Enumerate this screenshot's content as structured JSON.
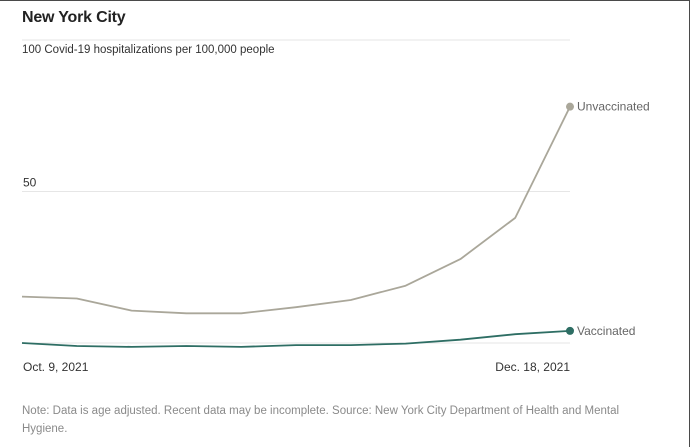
{
  "title": "New York City",
  "note": "Note: Data is age adjusted. Recent data may be incomplete. Source: New York City Department of Health and Mental Hygiene.",
  "chart_data": {
    "type": "line",
    "title": "New York City",
    "ylabel": "100 Covid-19 hospitalizations per 100,000 people",
    "xlabel": "",
    "ylim": [
      0,
      100
    ],
    "yticks": [
      {
        "value": 50,
        "label": "50"
      }
    ],
    "gridlines": [
      0,
      50,
      100
    ],
    "x_tick_labels": [
      {
        "index": 0,
        "label": "Oct. 9, 2021"
      },
      {
        "index": 10,
        "label": "Dec. 18, 2021"
      }
    ],
    "x": [
      "Oct. 9, 2021",
      "Oct. 16, 2021",
      "Oct. 23, 2021",
      "Oct. 30, 2021",
      "Nov. 6, 2021",
      "Nov. 13, 2021",
      "Nov. 20, 2021",
      "Nov. 27, 2021",
      "Dec. 4, 2021",
      "Dec. 11, 2021",
      "Dec. 18, 2021"
    ],
    "series": [
      {
        "name": "Unvaccinated",
        "color": "#aaa79a",
        "values": [
          15.3,
          14.7,
          10.7,
          9.8,
          9.8,
          11.8,
          14.2,
          18.9,
          27.7,
          41.3,
          78.0
        ]
      },
      {
        "name": "Vaccinated",
        "color": "#2e6e64",
        "values": [
          0.0,
          -1.0,
          -1.3,
          -1.0,
          -1.3,
          -0.7,
          -0.7,
          -0.2,
          1.1,
          2.9,
          4.0
        ]
      }
    ]
  }
}
